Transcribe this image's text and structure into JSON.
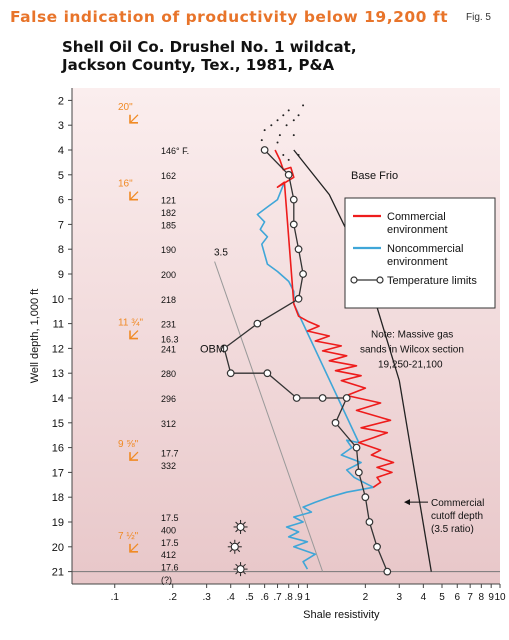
{
  "header": {
    "title": "False indication of productivity below 19,200 ft",
    "fig_label": "Fig. 5",
    "subtitle_line1": "Shell Oil Co. Drushel No. 1 wildcat,",
    "subtitle_line2": "Jackson County, Tex., 1981, P&A"
  },
  "colors": {
    "commercial": "#ee1c1c",
    "noncommercial": "#3fa6d8",
    "temperature": "#333333",
    "casing": "#f08a24",
    "background_top": "#fbeeee",
    "background_bottom": "#e8c7c9"
  },
  "chart_data": {
    "type": "line",
    "xlabel": "Shale resistivity",
    "ylabel": "Well depth, 1,000 ft",
    "x_scale": "log",
    "xlim": [
      0.06,
      10
    ],
    "ylim": [
      1.5,
      21.5
    ],
    "x_ticks": [
      {
        "v": 0.1,
        "label": ".1"
      },
      {
        "v": 0.2,
        "label": ".2"
      },
      {
        "v": 0.3,
        "label": ".3"
      },
      {
        "v": 0.4,
        "label": ".4"
      },
      {
        "v": 0.5,
        "label": ".5"
      },
      {
        "v": 0.6,
        "label": ".6"
      },
      {
        "v": 0.7,
        "label": ".7"
      },
      {
        "v": 0.8,
        "label": ".8"
      },
      {
        "v": 0.9,
        "label": ".9"
      },
      {
        "v": 1,
        "label": "1"
      },
      {
        "v": 2,
        "label": "2"
      },
      {
        "v": 3,
        "label": "3"
      },
      {
        "v": 4,
        "label": "4"
      },
      {
        "v": 5,
        "label": "5"
      },
      {
        "v": 6,
        "label": "6"
      },
      {
        "v": 7,
        "label": "7"
      },
      {
        "v": 8,
        "label": "8"
      },
      {
        "v": 9,
        "label": "9"
      },
      {
        "v": 10,
        "label": "10"
      }
    ],
    "y_ticks": [
      2,
      3,
      4,
      5,
      6,
      7,
      8,
      9,
      10,
      11,
      12,
      13,
      14,
      15,
      16,
      17,
      18,
      19,
      20,
      21
    ],
    "series": [
      {
        "name": "Commercial environment",
        "key": "commercial",
        "points": [
          [
            0.68,
            4.0
          ],
          [
            0.72,
            4.4
          ],
          [
            0.75,
            4.8
          ],
          [
            0.82,
            4.7
          ],
          [
            0.85,
            5.1
          ],
          [
            0.7,
            5.5
          ],
          [
            0.76,
            5.3
          ],
          [
            0.85,
            10.2
          ],
          [
            0.9,
            10.7
          ],
          [
            1.0,
            10.9
          ],
          [
            1.15,
            11.1
          ],
          [
            1.0,
            11.3
          ],
          [
            1.3,
            11.5
          ],
          [
            1.1,
            11.7
          ],
          [
            1.5,
            11.9
          ],
          [
            1.2,
            12.1
          ],
          [
            1.6,
            12.3
          ],
          [
            1.3,
            12.5
          ],
          [
            1.8,
            12.7
          ],
          [
            1.4,
            12.9
          ],
          [
            1.9,
            13.1
          ],
          [
            1.5,
            13.3
          ],
          [
            2.0,
            13.6
          ],
          [
            1.6,
            13.9
          ],
          [
            2.4,
            14.2
          ],
          [
            1.8,
            14.5
          ],
          [
            2.7,
            14.9
          ],
          [
            1.9,
            15.2
          ],
          [
            2.6,
            15.4
          ],
          [
            2.2,
            15.6
          ],
          [
            1.85,
            15.8
          ],
          [
            2.4,
            16.1
          ],
          [
            2.15,
            16.3
          ],
          [
            2.8,
            16.6
          ],
          [
            2.3,
            16.8
          ],
          [
            2.75,
            17.0
          ],
          [
            2.3,
            17.2
          ],
          [
            2.4,
            17.4
          ],
          [
            2.2,
            17.6
          ]
        ]
      },
      {
        "name": "Noncommercial environment",
        "key": "noncommercial",
        "points": [
          [
            0.76,
            5.3
          ],
          [
            0.7,
            6.0
          ],
          [
            0.62,
            6.3
          ],
          [
            0.55,
            6.6
          ],
          [
            0.6,
            6.9
          ],
          [
            0.57,
            7.2
          ],
          [
            0.62,
            7.5
          ],
          [
            0.58,
            7.8
          ],
          [
            0.6,
            8.2
          ],
          [
            0.62,
            8.6
          ],
          [
            0.7,
            8.9
          ],
          [
            0.8,
            9.3
          ],
          [
            0.85,
            9.7
          ],
          [
            0.85,
            10.2
          ],
          [
            1.85,
            15.8
          ],
          [
            1.6,
            15.7
          ],
          [
            1.7,
            16.0
          ],
          [
            1.5,
            16.3
          ],
          [
            1.9,
            16.6
          ],
          [
            1.6,
            16.9
          ],
          [
            1.75,
            17.2
          ],
          [
            2.2,
            17.6
          ],
          [
            1.6,
            17.8
          ],
          [
            1.3,
            18.0
          ],
          [
            1.1,
            18.2
          ],
          [
            0.95,
            18.4
          ],
          [
            1.05,
            18.6
          ],
          [
            0.85,
            18.8
          ],
          [
            0.95,
            19.0
          ],
          [
            0.78,
            19.2
          ],
          [
            0.9,
            19.4
          ],
          [
            0.8,
            19.6
          ],
          [
            1.0,
            19.8
          ],
          [
            0.85,
            20.0
          ],
          [
            1.1,
            20.3
          ],
          [
            0.95,
            20.6
          ],
          [
            1.0,
            20.9
          ]
        ]
      },
      {
        "name": "Temperature limits",
        "key": "temperature",
        "marker": "open-circle",
        "points": [
          [
            0.6,
            4.0
          ],
          [
            0.8,
            5.0
          ],
          [
            0.85,
            6.0
          ],
          [
            0.85,
            7.0
          ],
          [
            0.9,
            8.0
          ],
          [
            0.95,
            9.0
          ],
          [
            0.9,
            10.0
          ],
          [
            0.55,
            11.0
          ],
          [
            0.37,
            12.0
          ],
          [
            0.4,
            13.0
          ],
          [
            0.62,
            13.0
          ],
          [
            0.88,
            14.0
          ],
          [
            1.2,
            14.0
          ],
          [
            1.6,
            14.0
          ],
          [
            1.4,
            15.0
          ],
          [
            1.8,
            16.0
          ],
          [
            1.85,
            17.0
          ],
          [
            2.0,
            18.0
          ],
          [
            2.1,
            19.0
          ],
          [
            2.3,
            20.0
          ],
          [
            2.6,
            21.0
          ]
        ]
      }
    ],
    "reference_lines": [
      {
        "label": "3.5",
        "points": [
          [
            0.33,
            8.5
          ],
          [
            1.2,
            21.0
          ]
        ]
      },
      {
        "label": "Commercial cutoff depth (3.5 ratio)",
        "points": [
          [
            0.85,
            4.0
          ],
          [
            1.3,
            5.8
          ],
          [
            2.0,
            8.8
          ],
          [
            3.0,
            13.3
          ],
          [
            4.4,
            21.0
          ]
        ]
      }
    ],
    "dotted_points": [
      [
        0.6,
        3.2
      ],
      [
        0.65,
        3.0
      ],
      [
        0.7,
        2.8
      ],
      [
        0.72,
        3.4
      ],
      [
        0.75,
        2.6
      ],
      [
        0.8,
        2.4
      ],
      [
        0.78,
        3.0
      ],
      [
        0.85,
        2.8
      ],
      [
        0.9,
        2.6
      ],
      [
        0.95,
        2.2
      ],
      [
        0.85,
        3.4
      ],
      [
        0.7,
        3.7
      ],
      [
        0.58,
        3.6
      ],
      [
        0.75,
        4.2
      ],
      [
        0.8,
        4.4
      ],
      [
        0.9,
        4.2
      ]
    ],
    "sun_symbols": [
      [
        0.45,
        19.2
      ],
      [
        0.42,
        20.0
      ],
      [
        0.45,
        20.9
      ]
    ],
    "baseline_depth": 21.0,
    "temperatures": [
      {
        "depth": 4,
        "label": "146° F."
      },
      {
        "depth": 5,
        "label": "162"
      },
      {
        "depth": 6,
        "label": "121"
      },
      {
        "depth": 6.5,
        "label": "182"
      },
      {
        "depth": 7,
        "label": "185"
      },
      {
        "depth": 8,
        "label": "190"
      },
      {
        "depth": 9,
        "label": "200"
      },
      {
        "depth": 10,
        "label": "218"
      },
      {
        "depth": 11,
        "label": "231"
      },
      {
        "depth": 11.6,
        "label": "16.3"
      },
      {
        "depth": 12,
        "label": "241"
      },
      {
        "depth": 13,
        "label": "280"
      },
      {
        "depth": 14,
        "label": "296"
      },
      {
        "depth": 15,
        "label": "312"
      },
      {
        "depth": 16.2,
        "label": "17.7"
      },
      {
        "depth": 16.7,
        "label": "332"
      },
      {
        "depth": 18.8,
        "label": "17.5"
      },
      {
        "depth": 19.3,
        "label": "400"
      },
      {
        "depth": 19.8,
        "label": "17.5"
      },
      {
        "depth": 20.3,
        "label": "412"
      },
      {
        "depth": 20.8,
        "label": "17.6"
      },
      {
        "depth": 21.3,
        "label": "(?)"
      }
    ],
    "casings": [
      {
        "depth": 2.5,
        "label": "20\""
      },
      {
        "depth": 5.6,
        "label": "16\""
      },
      {
        "depth": 11.2,
        "label": "11 ¾\""
      },
      {
        "depth": 16.1,
        "label": "9 ⅝\""
      },
      {
        "depth": 19.8,
        "label": "7 ½\""
      }
    ],
    "annotations": {
      "base_frio": "Base Frio",
      "obm": "OBM",
      "ratio_label": "3.5",
      "note_line1": "Note: Massive gas",
      "note_line2": "sands in Wilcox section",
      "note_line3": "19,250-21,100",
      "cutoff_line1": "Commercial",
      "cutoff_line2": "cutoff depth",
      "cutoff_line3": "(3.5 ratio)"
    },
    "legend": {
      "position": "right",
      "items": [
        {
          "key": "commercial",
          "line1": "Commercial",
          "line2": "environment"
        },
        {
          "key": "noncommercial",
          "line1": "Noncommercial",
          "line2": "environment"
        },
        {
          "key": "temperature",
          "line1": "Temperature limits",
          "line2": ""
        }
      ]
    },
    "grid": false
  }
}
